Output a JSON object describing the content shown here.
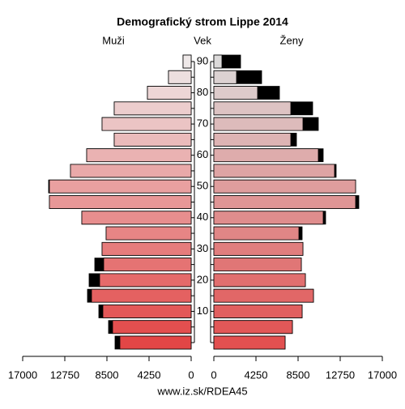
{
  "chart_data": {
    "type": "pyramid",
    "title": "Demografický strom Lippe 2014",
    "left_label": "Muži",
    "center_label": "Vek",
    "right_label": "Ženy",
    "footer": "www.iz.sk/RDEA45",
    "categories": [
      null,
      null,
      10,
      null,
      20,
      null,
      30,
      null,
      40,
      null,
      50,
      null,
      60,
      null,
      70,
      null,
      80,
      null,
      90
    ],
    "series": [
      {
        "name": "Muži",
        "values": [
          7683,
          8337,
          9317,
          10462,
          10298,
          9726,
          8990,
          8582,
          11034,
          14303,
          14385,
          12178,
          10543,
          7764,
          8990,
          7764,
          4413,
          2288,
          817
        ]
      },
      {
        "name": "Ženy",
        "values": [
          7192,
          7928,
          8909,
          10053,
          9236,
          8827,
          8990,
          8909,
          11279,
          14630,
          14303,
          12341,
          11034,
          8337,
          10543,
          9971,
          6620,
          4822,
          2697
        ]
      }
    ],
    "xlim": [
      0,
      17000
    ],
    "xticks": [
      0,
      4250,
      8500,
      12750,
      17000
    ],
    "surplus_color": "#000000"
  }
}
